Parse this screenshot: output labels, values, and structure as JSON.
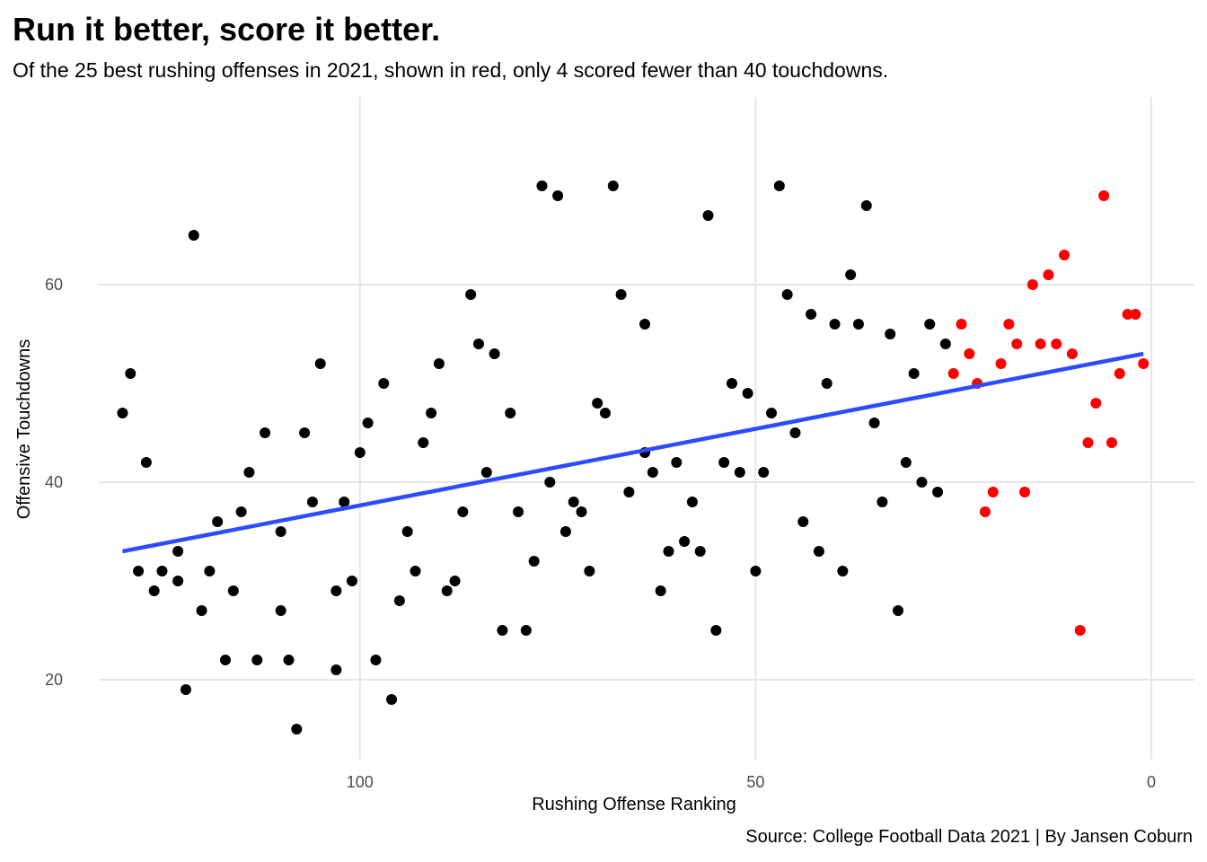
{
  "chart_data": {
    "type": "scatter",
    "title": "Run it better, score it better.",
    "subtitle": "Of the 25 best rushing offenses in 2021, shown in red, only 4 scored fewer than 40 touchdowns.",
    "caption": "Source: College Football Data 2021 | By Jansen Coburn",
    "xlabel": "Rushing Offense Ranking",
    "ylabel": "Offensive Touchdowns",
    "x_reversed": true,
    "xlim": [
      0,
      130
    ],
    "ylim": [
      12,
      77
    ],
    "x_ticks": [
      100,
      50,
      0
    ],
    "y_ticks": [
      20,
      40,
      60
    ],
    "grid": true,
    "colors": {
      "other": "#000000",
      "top25": "#ff0000",
      "trend": "#2d4cff",
      "grid": "#e6e6e6"
    },
    "series": [
      {
        "name": "",
        "color": "#000000",
        "points": [
          [
            130,
            47
          ],
          [
            129,
            51
          ],
          [
            128,
            31
          ],
          [
            127,
            42
          ],
          [
            126,
            29
          ],
          [
            125,
            31
          ],
          [
            123,
            33
          ],
          [
            123,
            30
          ],
          [
            122,
            19
          ],
          [
            121,
            65
          ],
          [
            120,
            27
          ],
          [
            119,
            31
          ],
          [
            118,
            36
          ],
          [
            117,
            22
          ],
          [
            116,
            29
          ],
          [
            115,
            37
          ],
          [
            114,
            41
          ],
          [
            113,
            22
          ],
          [
            112,
            45
          ],
          [
            110,
            35
          ],
          [
            110,
            27
          ],
          [
            109,
            22
          ],
          [
            108,
            15
          ],
          [
            107,
            45
          ],
          [
            106,
            38
          ],
          [
            105,
            52
          ],
          [
            103,
            21
          ],
          [
            103,
            29
          ],
          [
            102,
            38
          ],
          [
            101,
            30
          ],
          [
            100,
            43
          ],
          [
            99,
            46
          ],
          [
            98,
            22
          ],
          [
            97,
            50
          ],
          [
            96,
            18
          ],
          [
            95,
            28
          ],
          [
            94,
            35
          ],
          [
            93,
            31
          ],
          [
            92,
            44
          ],
          [
            91,
            47
          ],
          [
            90,
            52
          ],
          [
            89,
            29
          ],
          [
            88,
            30
          ],
          [
            87,
            37
          ],
          [
            86,
            59
          ],
          [
            85,
            54
          ],
          [
            84,
            41
          ],
          [
            83,
            53
          ],
          [
            82,
            25
          ],
          [
            81,
            47
          ],
          [
            80,
            37
          ],
          [
            79,
            25
          ],
          [
            78,
            32
          ],
          [
            77,
            70
          ],
          [
            76,
            40
          ],
          [
            75,
            69
          ],
          [
            74,
            35
          ],
          [
            73,
            38
          ],
          [
            72,
            37
          ],
          [
            71,
            31
          ],
          [
            70,
            48
          ],
          [
            69,
            47
          ],
          [
            68,
            70
          ],
          [
            67,
            59
          ],
          [
            66,
            39
          ],
          [
            64,
            56
          ],
          [
            64,
            43
          ],
          [
            63,
            41
          ],
          [
            62,
            29
          ],
          [
            61,
            33
          ],
          [
            60,
            42
          ],
          [
            59,
            34
          ],
          [
            58,
            38
          ],
          [
            57,
            33
          ],
          [
            56,
            67
          ],
          [
            55,
            25
          ],
          [
            54,
            42
          ],
          [
            53,
            50
          ],
          [
            52,
            41
          ],
          [
            51,
            49
          ],
          [
            50,
            31
          ],
          [
            49,
            41
          ],
          [
            48,
            47
          ],
          [
            47,
            70
          ],
          [
            46,
            59
          ],
          [
            45,
            45
          ],
          [
            44,
            36
          ],
          [
            43,
            57
          ],
          [
            42,
            33
          ],
          [
            41,
            50
          ],
          [
            40,
            56
          ],
          [
            39,
            31
          ],
          [
            38,
            61
          ],
          [
            37,
            56
          ],
          [
            36,
            68
          ],
          [
            35,
            46
          ],
          [
            34,
            38
          ],
          [
            33,
            55
          ],
          [
            32,
            27
          ],
          [
            31,
            42
          ],
          [
            30,
            51
          ],
          [
            29,
            40
          ],
          [
            28,
            56
          ],
          [
            27,
            39
          ],
          [
            26,
            54
          ]
        ]
      },
      {
        "name": "",
        "color": "#ff0000",
        "points": [
          [
            25,
            51
          ],
          [
            24,
            56
          ],
          [
            23,
            53
          ],
          [
            22,
            50
          ],
          [
            21,
            37
          ],
          [
            20,
            39
          ],
          [
            19,
            52
          ],
          [
            18,
            56
          ],
          [
            17,
            54
          ],
          [
            16,
            39
          ],
          [
            15,
            60
          ],
          [
            14,
            54
          ],
          [
            13,
            61
          ],
          [
            12,
            54
          ],
          [
            11,
            63
          ],
          [
            10,
            53
          ],
          [
            9,
            25
          ],
          [
            8,
            44
          ],
          [
            7,
            48
          ],
          [
            6,
            69
          ],
          [
            5,
            44
          ],
          [
            4,
            51
          ],
          [
            3,
            57
          ],
          [
            2,
            57
          ],
          [
            1,
            52
          ]
        ]
      }
    ],
    "trend_line": {
      "x": [
        130,
        1
      ],
      "y": [
        33,
        53
      ]
    }
  }
}
